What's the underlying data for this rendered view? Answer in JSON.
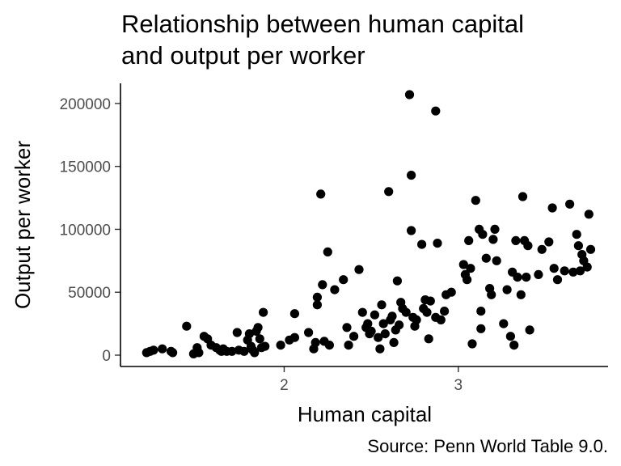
{
  "chart_data": {
    "type": "scatter",
    "title_line1": "Relationship between human capital",
    "title_line2": "and output per worker",
    "xlabel": "Human capital",
    "ylabel": "Output per worker",
    "caption": "Source: Penn World Table 9.0.",
    "xlim": [
      1.06,
      3.86
    ],
    "ylim": [
      -9000,
      216000
    ],
    "x_ticks": [
      2,
      3
    ],
    "x_tick_labels": [
      "2",
      "3"
    ],
    "y_ticks": [
      0,
      50000,
      100000,
      150000,
      200000
    ],
    "y_tick_labels": [
      "0",
      "50000",
      "100000",
      "150000",
      "200000"
    ],
    "grid": false,
    "point_color": "#000000",
    "points": [
      [
        1.21,
        2000
      ],
      [
        1.23,
        3000
      ],
      [
        1.25,
        4000
      ],
      [
        1.3,
        5000
      ],
      [
        1.35,
        3000
      ],
      [
        1.36,
        2000
      ],
      [
        1.44,
        23000
      ],
      [
        1.48,
        1000
      ],
      [
        1.5,
        6000
      ],
      [
        1.51,
        2000
      ],
      [
        1.54,
        15000
      ],
      [
        1.56,
        13000
      ],
      [
        1.58,
        8000
      ],
      [
        1.61,
        6000
      ],
      [
        1.63,
        4000
      ],
      [
        1.64,
        3000
      ],
      [
        1.65,
        5000
      ],
      [
        1.67,
        3000
      ],
      [
        1.7,
        3000
      ],
      [
        1.73,
        18000
      ],
      [
        1.74,
        4000
      ],
      [
        1.77,
        3000
      ],
      [
        1.79,
        12000
      ],
      [
        1.8,
        17000
      ],
      [
        1.81,
        7000
      ],
      [
        1.82,
        4000
      ],
      [
        1.83,
        2000
      ],
      [
        1.84,
        19000
      ],
      [
        1.85,
        22000
      ],
      [
        1.86,
        13000
      ],
      [
        1.87,
        6000
      ],
      [
        1.88,
        34000
      ],
      [
        1.89,
        7000
      ],
      [
        1.98,
        8000
      ],
      [
        2.03,
        12000
      ],
      [
        2.06,
        14000
      ],
      [
        2.06,
        33000
      ],
      [
        2.14,
        18000
      ],
      [
        2.17,
        5000
      ],
      [
        2.18,
        10000
      ],
      [
        2.19,
        46000
      ],
      [
        2.19,
        40000
      ],
      [
        2.21,
        128000
      ],
      [
        2.22,
        56000
      ],
      [
        2.23,
        11000
      ],
      [
        2.25,
        82000
      ],
      [
        2.26,
        8000
      ],
      [
        2.29,
        52000
      ],
      [
        2.34,
        60000
      ],
      [
        2.36,
        22000
      ],
      [
        2.37,
        8000
      ],
      [
        2.4,
        15000
      ],
      [
        2.43,
        68000
      ],
      [
        2.45,
        34000
      ],
      [
        2.47,
        22000
      ],
      [
        2.48,
        25000
      ],
      [
        2.49,
        17000
      ],
      [
        2.5,
        19000
      ],
      [
        2.52,
        32000
      ],
      [
        2.54,
        14000
      ],
      [
        2.55,
        5000
      ],
      [
        2.56,
        40000
      ],
      [
        2.57,
        25000
      ],
      [
        2.58,
        17000
      ],
      [
        2.6,
        130000
      ],
      [
        2.61,
        28000
      ],
      [
        2.62,
        31000
      ],
      [
        2.63,
        10000
      ],
      [
        2.64,
        20000
      ],
      [
        2.65,
        59000
      ],
      [
        2.66,
        24000
      ],
      [
        2.67,
        42000
      ],
      [
        2.68,
        37000
      ],
      [
        2.7,
        34000
      ],
      [
        2.72,
        207000
      ],
      [
        2.73,
        99000
      ],
      [
        2.73,
        143000
      ],
      [
        2.74,
        30000
      ],
      [
        2.75,
        23000
      ],
      [
        2.76,
        28000
      ],
      [
        2.79,
        88000
      ],
      [
        2.8,
        37000
      ],
      [
        2.81,
        44000
      ],
      [
        2.82,
        34000
      ],
      [
        2.83,
        13000
      ],
      [
        2.84,
        43000
      ],
      [
        2.87,
        30000
      ],
      [
        2.87,
        194000
      ],
      [
        2.88,
        89000
      ],
      [
        2.9,
        28000
      ],
      [
        2.92,
        35000
      ],
      [
        2.93,
        48000
      ],
      [
        2.96,
        50000
      ],
      [
        3.03,
        72000
      ],
      [
        3.04,
        64000
      ],
      [
        3.05,
        60000
      ],
      [
        3.06,
        91000
      ],
      [
        3.07,
        69000
      ],
      [
        3.08,
        9000
      ],
      [
        3.1,
        123000
      ],
      [
        3.12,
        100000
      ],
      [
        3.13,
        21000
      ],
      [
        3.13,
        35000
      ],
      [
        3.14,
        96000
      ],
      [
        3.16,
        77000
      ],
      [
        3.18,
        53000
      ],
      [
        3.19,
        48000
      ],
      [
        3.2,
        92000
      ],
      [
        3.21,
        100000
      ],
      [
        3.22,
        75000
      ],
      [
        3.26,
        25000
      ],
      [
        3.28,
        52000
      ],
      [
        3.3,
        15000
      ],
      [
        3.31,
        66000
      ],
      [
        3.32,
        8000
      ],
      [
        3.33,
        91000
      ],
      [
        3.34,
        62000
      ],
      [
        3.36,
        48000
      ],
      [
        3.37,
        126000
      ],
      [
        3.38,
        91000
      ],
      [
        3.39,
        62000
      ],
      [
        3.4,
        87000
      ],
      [
        3.41,
        20000
      ],
      [
        3.46,
        64000
      ],
      [
        3.48,
        84000
      ],
      [
        3.52,
        90000
      ],
      [
        3.54,
        117000
      ],
      [
        3.55,
        69000
      ],
      [
        3.57,
        60000
      ],
      [
        3.61,
        67000
      ],
      [
        3.64,
        120000
      ],
      [
        3.66,
        66000
      ],
      [
        3.68,
        96000
      ],
      [
        3.69,
        87000
      ],
      [
        3.7,
        67000
      ],
      [
        3.71,
        80000
      ],
      [
        3.72,
        75000
      ],
      [
        3.74,
        70000
      ],
      [
        3.75,
        112000
      ],
      [
        3.76,
        84000
      ]
    ]
  }
}
